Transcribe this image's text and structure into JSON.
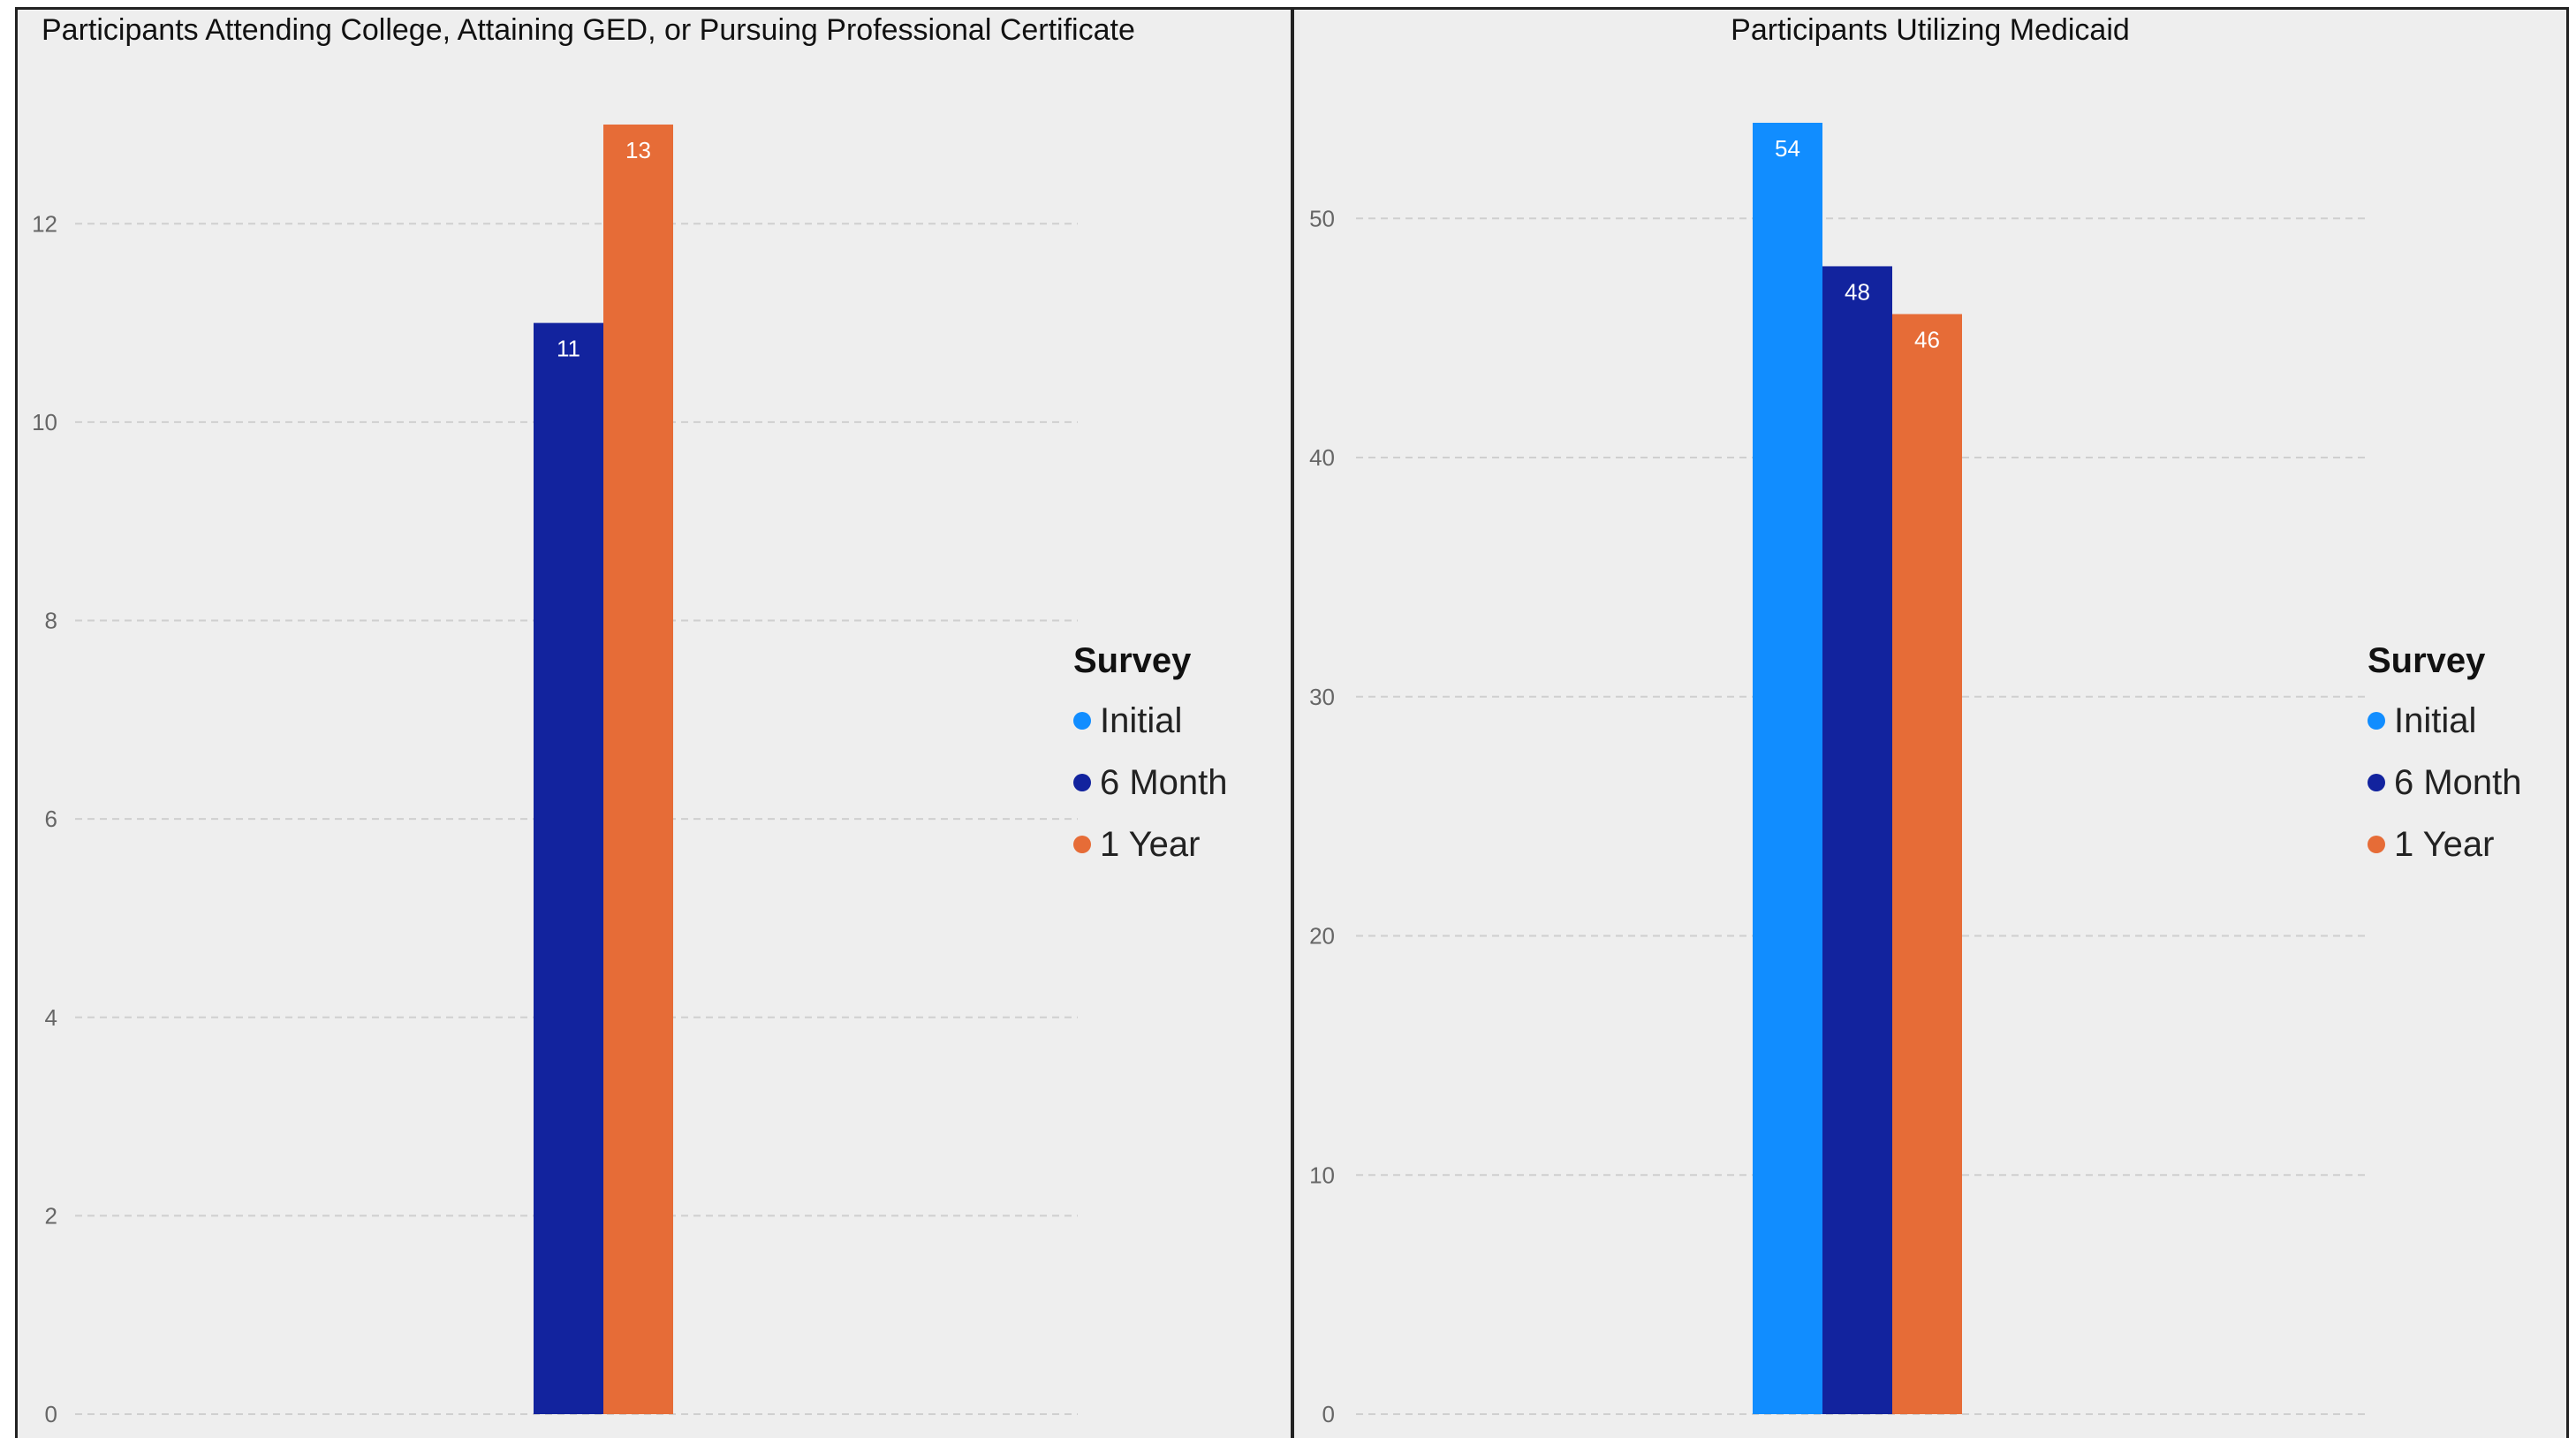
{
  "colors": {
    "initial": "#118dff",
    "six_month": "#12239e",
    "one_year": "#e66c37"
  },
  "chart_data": [
    {
      "type": "bar",
      "title": "Participants Attending College, Attaining GED, or Pursuing Professional Certificate",
      "xlabel": "",
      "ylabel": "",
      "ylim": [
        0,
        13
      ],
      "yticks": [
        0,
        2,
        4,
        6,
        8,
        10,
        12
      ],
      "grid": true,
      "legend_position": "right",
      "legend_title": "Survey",
      "legend": [
        "Initial",
        "6 Month",
        "1 Year"
      ],
      "series": [
        {
          "name": "6 Month",
          "values": [
            11
          ],
          "color_key": "six_month"
        },
        {
          "name": "1 Year",
          "values": [
            13
          ],
          "color_key": "one_year"
        }
      ]
    },
    {
      "type": "bar",
      "title": "Participants Utilizing Medicaid",
      "xlabel": "",
      "ylabel": "",
      "ylim": [
        0,
        54
      ],
      "yticks": [
        0,
        10,
        20,
        30,
        40,
        50
      ],
      "grid": true,
      "legend_position": "right",
      "legend_title": "Survey",
      "legend": [
        "Initial",
        "6 Month",
        "1 Year"
      ],
      "series": [
        {
          "name": "Initial",
          "values": [
            54
          ],
          "color_key": "initial"
        },
        {
          "name": "6 Month",
          "values": [
            48
          ],
          "color_key": "six_month"
        },
        {
          "name": "1 Year",
          "values": [
            46
          ],
          "color_key": "one_year"
        }
      ]
    }
  ]
}
